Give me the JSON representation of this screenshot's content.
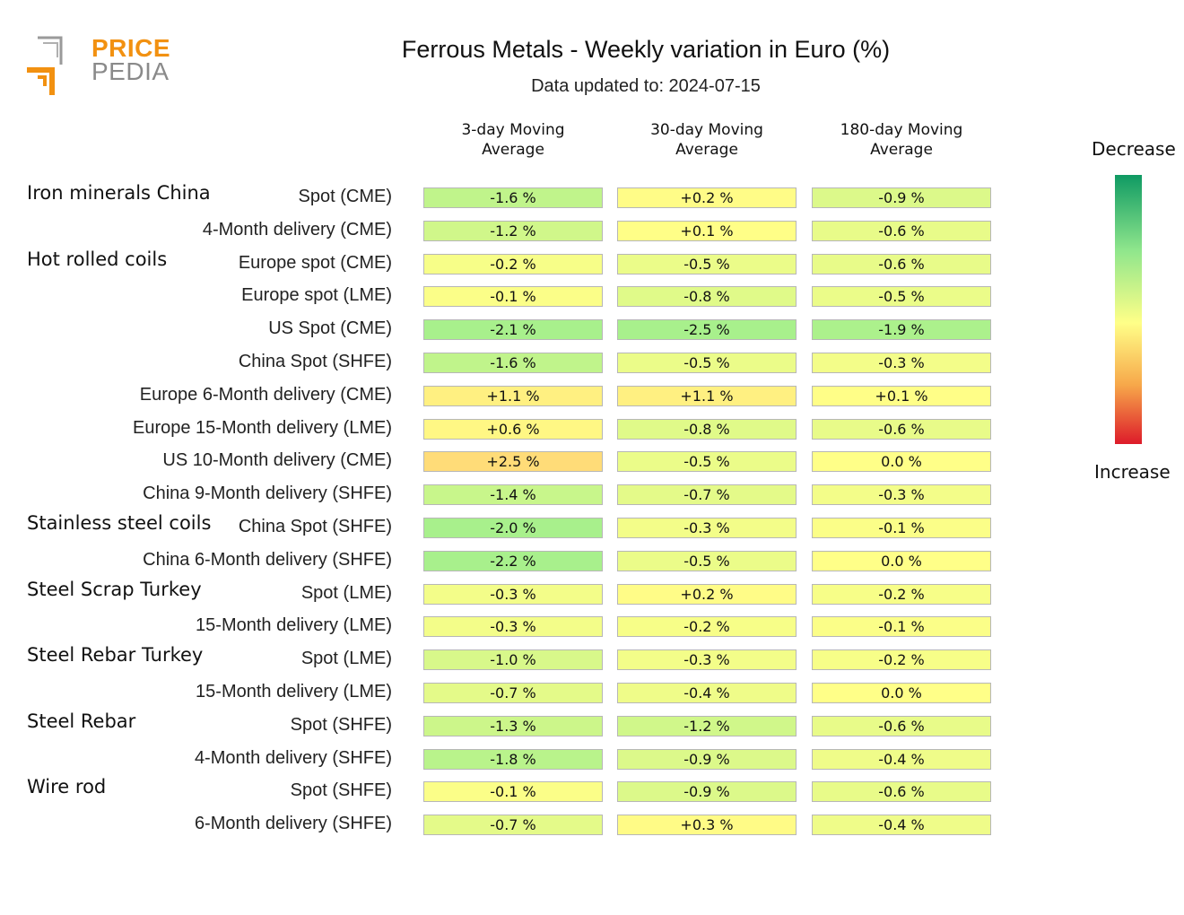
{
  "logo": {
    "word1": "PRICE",
    "word2": "PEDIA"
  },
  "title": "Ferrous Metals - Weekly variation in Euro (%)",
  "subtitle": "Data updated to: 2024-07-15",
  "legend": {
    "top": "Decrease",
    "bottom": "Increase"
  },
  "colors": {
    "decrease_strong": "#0f9a63",
    "neutral": "#ffff88",
    "increase_strong": "#dd1b2a"
  },
  "chart_data": {
    "type": "heatmap",
    "columns": [
      "3-day Moving\nAverage",
      "30-day Moving\nAverage",
      "180-day Moving\nAverage"
    ],
    "groups": [
      {
        "name": "Iron minerals China",
        "rows": [
          {
            "label": "Spot (CME)",
            "values": [
              -1.6,
              0.2,
              -0.9
            ]
          },
          {
            "label": "4-Month delivery (CME)",
            "values": [
              -1.2,
              0.1,
              -0.6
            ]
          }
        ]
      },
      {
        "name": "Hot rolled coils",
        "rows": [
          {
            "label": "Europe spot (CME)",
            "values": [
              -0.2,
              -0.5,
              -0.6
            ]
          },
          {
            "label": "Europe spot (LME)",
            "values": [
              -0.1,
              -0.8,
              -0.5
            ]
          },
          {
            "label": "US Spot (CME)",
            "values": [
              -2.1,
              -2.5,
              -1.9
            ]
          },
          {
            "label": "China Spot (SHFE)",
            "values": [
              -1.6,
              -0.5,
              -0.3
            ]
          },
          {
            "label": "Europe 6-Month delivery (CME)",
            "values": [
              1.1,
              1.1,
              0.1
            ]
          },
          {
            "label": "Europe 15-Month delivery (LME)",
            "values": [
              0.6,
              -0.8,
              -0.6
            ]
          },
          {
            "label": "US 10-Month delivery (CME)",
            "values": [
              2.5,
              -0.5,
              0.0
            ]
          },
          {
            "label": "China 9-Month delivery (SHFE)",
            "values": [
              -1.4,
              -0.7,
              -0.3
            ]
          }
        ]
      },
      {
        "name": "Stainless steel coils",
        "rows": [
          {
            "label": "China Spot (SHFE)",
            "values": [
              -2.0,
              -0.3,
              -0.1
            ]
          },
          {
            "label": "China 6-Month delivery (SHFE)",
            "values": [
              -2.2,
              -0.5,
              0.0
            ]
          }
        ]
      },
      {
        "name": "Steel Scrap Turkey",
        "rows": [
          {
            "label": "Spot (LME)",
            "values": [
              -0.3,
              0.2,
              -0.2
            ]
          },
          {
            "label": "15-Month delivery (LME)",
            "values": [
              -0.3,
              -0.2,
              -0.1
            ]
          }
        ]
      },
      {
        "name": "Steel Rebar Turkey",
        "rows": [
          {
            "label": "Spot (LME)",
            "values": [
              -1.0,
              -0.3,
              -0.2
            ]
          },
          {
            "label": "15-Month delivery (LME)",
            "values": [
              -0.7,
              -0.4,
              0.0
            ]
          }
        ]
      },
      {
        "name": "Steel Rebar",
        "rows": [
          {
            "label": "Spot (SHFE)",
            "values": [
              -1.3,
              -1.2,
              -0.6
            ]
          },
          {
            "label": "4-Month delivery (SHFE)",
            "values": [
              -1.8,
              -0.9,
              -0.4
            ]
          }
        ]
      },
      {
        "name": "Wire rod",
        "rows": [
          {
            "label": "Spot (SHFE)",
            "values": [
              -0.1,
              -0.9,
              -0.6
            ]
          },
          {
            "label": "6-Month delivery (SHFE)",
            "values": [
              -0.7,
              0.3,
              -0.4
            ]
          }
        ]
      }
    ]
  }
}
